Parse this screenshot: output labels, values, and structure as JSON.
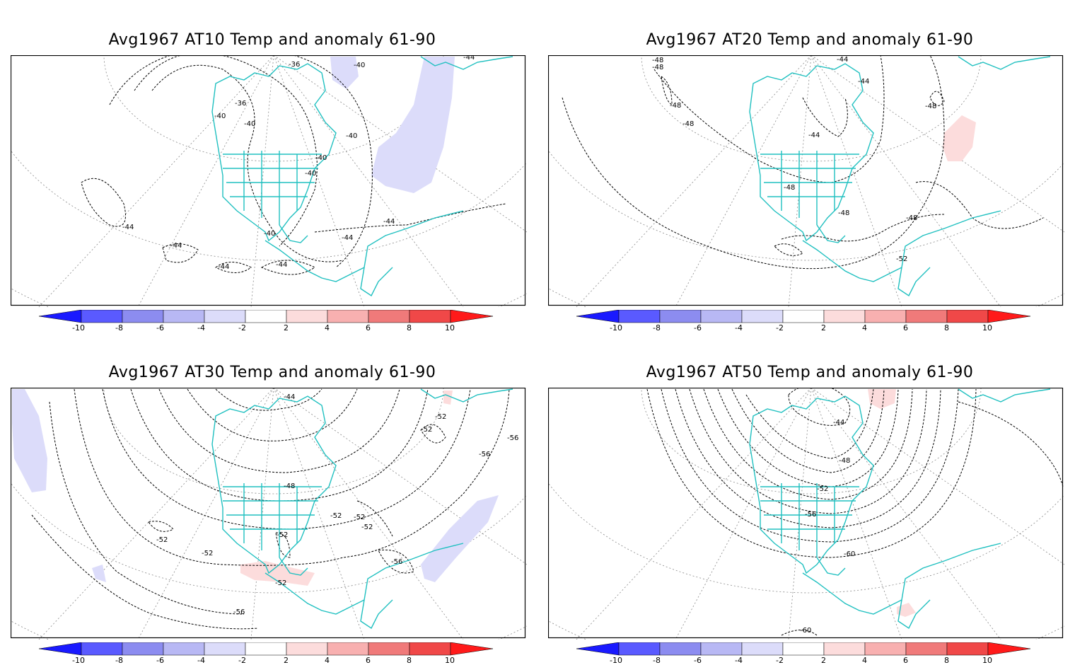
{
  "colors": {
    "coast": "#20c0c0",
    "contour": "#000000",
    "graticule": "#888888",
    "neg": [
      "#1a1aff",
      "#5a5aff",
      "#8c8cf0",
      "#b8b8f4",
      "#dcdcfa"
    ],
    "pos": [
      "#fcdcdc",
      "#f8b0b0",
      "#f07a7a",
      "#f04848",
      "#ff1a1a"
    ]
  },
  "colorbar": {
    "labels": [
      "-10",
      "-8",
      "-6",
      "-4",
      "-2",
      "2",
      "4",
      "6",
      "8",
      "10"
    ]
  },
  "panels": [
    {
      "title": "Avg1967 AT10 Temp and anomaly 61-90",
      "contour_labels": [
        "-36",
        "-36",
        "-40",
        "-40",
        "-40",
        "-40",
        "-40",
        "-40",
        "-40",
        "-44",
        "-44",
        "-44",
        "-44",
        "-44",
        "-44",
        "-44"
      ],
      "anomaly_signs": [
        "negative",
        "negative"
      ]
    },
    {
      "title": "Avg1967 AT20 Temp and anomaly 61-90",
      "contour_labels": [
        "-48",
        "-48",
        "-48",
        "-48",
        "-44",
        "-44",
        "-44",
        "-48",
        "-48",
        "-48",
        "-48",
        "-52"
      ],
      "anomaly_signs": [
        "positive"
      ]
    },
    {
      "title": "Avg1967 AT30 Temp and anomaly 61-90",
      "contour_labels": [
        "-44",
        "-52",
        "-52",
        "-56",
        "-56",
        "-48",
        "-52",
        "-52",
        "-52",
        "-52",
        "-52",
        "-52",
        "-52",
        "-56",
        "-56"
      ],
      "anomaly_signs": [
        "negative",
        "negative",
        "negative",
        "positive",
        "positive"
      ]
    },
    {
      "title": "Avg1967 AT50 Temp and anomaly 61-90",
      "contour_labels": [
        "-44",
        "-48",
        "-52",
        "-56",
        "-60",
        "-60"
      ],
      "anomaly_signs": [
        "positive",
        "positive"
      ]
    }
  ]
}
